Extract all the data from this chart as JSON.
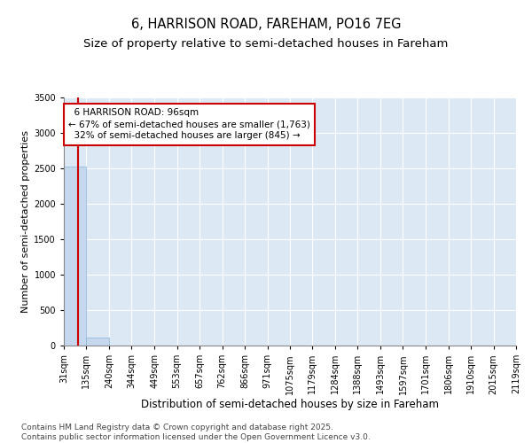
{
  "title_line1": "6, HARRISON ROAD, FAREHAM, PO16 7EG",
  "title_line2": "Size of property relative to semi-detached houses in Fareham",
  "xlabel": "Distribution of semi-detached houses by size in Fareham",
  "ylabel": "Number of semi-detached properties",
  "footer": "Contains HM Land Registry data © Crown copyright and database right 2025.\nContains public sector information licensed under the Open Government Licence v3.0.",
  "bin_labels": [
    "31sqm",
    "135sqm",
    "240sqm",
    "344sqm",
    "449sqm",
    "553sqm",
    "657sqm",
    "762sqm",
    "866sqm",
    "971sqm",
    "1075sqm",
    "1179sqm",
    "1284sqm",
    "1388sqm",
    "1493sqm",
    "1597sqm",
    "1701sqm",
    "1806sqm",
    "1910sqm",
    "2015sqm",
    "2119sqm"
  ],
  "bin_edges": [
    31,
    135,
    240,
    344,
    449,
    553,
    657,
    762,
    866,
    971,
    1075,
    1179,
    1284,
    1388,
    1493,
    1597,
    1701,
    1806,
    1910,
    2015,
    2119
  ],
  "bar_heights": [
    2530,
    110,
    0,
    0,
    0,
    0,
    0,
    0,
    0,
    0,
    0,
    0,
    0,
    0,
    0,
    0,
    0,
    0,
    0,
    0
  ],
  "bar_color": "#c5d8ee",
  "bar_edgecolor": "#8ab4d8",
  "property_size": 96,
  "property_label": "6 HARRISON ROAD: 96sqm",
  "pct_smaller": 67,
  "count_smaller": 1763,
  "pct_larger": 32,
  "count_larger": 845,
  "vline_color": "#cc0000",
  "annotation_box_color": "#cc0000",
  "ylim": [
    0,
    3500
  ],
  "yticks": [
    0,
    500,
    1000,
    1500,
    2000,
    2500,
    3000,
    3500
  ],
  "background_color": "#dce9f5",
  "fig_background": "#ffffff",
  "grid_color": "#ffffff",
  "title_fontsize": 10.5,
  "subtitle_fontsize": 9.5,
  "ylabel_fontsize": 8,
  "xlabel_fontsize": 8.5,
  "tick_fontsize": 7,
  "annotation_fontsize": 7.5,
  "footer_fontsize": 6.5
}
